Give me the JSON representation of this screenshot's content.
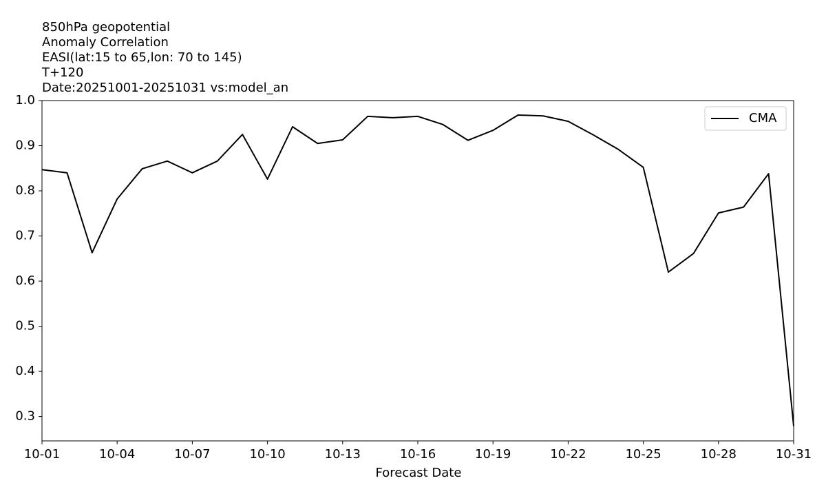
{
  "chart_data": {
    "type": "line",
    "title": [
      "850hPa  geopotential",
      "Anomaly Correlation",
      "EASI(lat:15 to 65,lon: 70 to 145)",
      "T+120",
      "Date:20251001-20251031  vs:model_an"
    ],
    "x_label": "Forecast Date",
    "categories": [
      "10-01",
      null,
      null,
      "10-04",
      null,
      null,
      "10-07",
      null,
      null,
      "10-10",
      null,
      null,
      "10-13",
      null,
      null,
      "10-16",
      null,
      null,
      "10-19",
      null,
      null,
      "10-22",
      null,
      null,
      "10-25",
      null,
      null,
      "10-28",
      null,
      null,
      "10-31"
    ],
    "series": [
      {
        "name": "CMA",
        "color": "#000000",
        "values": [
          0.847,
          0.84,
          0.663,
          0.782,
          0.849,
          0.866,
          0.84,
          0.866,
          0.925,
          0.826,
          0.942,
          0.905,
          0.913,
          0.965,
          0.962,
          0.965,
          0.947,
          0.912,
          0.934,
          0.968,
          0.966,
          0.954,
          0.924,
          0.892,
          0.852,
          0.62,
          0.661,
          0.751,
          0.764,
          0.838,
          0.279
        ]
      }
    ],
    "ylim": [
      0.246,
      1.0
    ],
    "yticks": [
      0.3,
      0.4,
      0.5,
      0.6,
      0.7,
      0.8,
      0.9,
      {
        "value": 1,
        "label": "1.0"
      }
    ],
    "legend": "upper right",
    "grid": false
  }
}
